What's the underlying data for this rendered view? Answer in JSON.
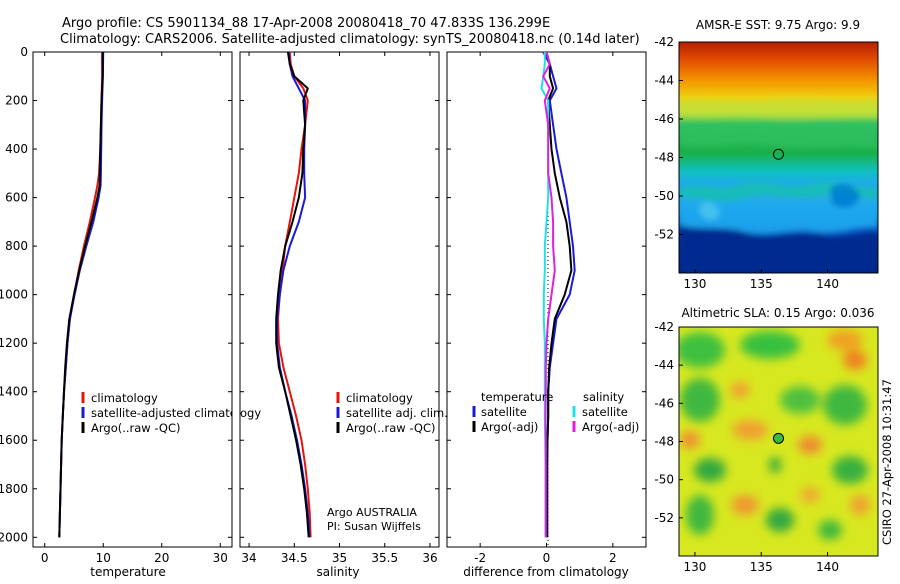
{
  "header": {
    "line1": "Argo profile: CS 5901134_88 17-Apr-2008 20080418_70 47.833S 136.299E",
    "line2": "Climatology: CARS2006. Satellite-adjusted climatology: synTS_20080418.nc (0.14d later)"
  },
  "side_text": "CSIRO 27-Apr-2008 10:31:47",
  "colors": {
    "red": "#e8140a",
    "blue": "#1a1ad8",
    "black": "#000000",
    "cyan": "#22e0e8",
    "magenta": "#e020e0"
  },
  "depth_axis": {
    "ticks": [
      "0",
      "200",
      "400",
      "600",
      "800",
      "1000",
      "1200",
      "1400",
      "1600",
      "1800",
      "2000"
    ],
    "range": [
      0,
      2040
    ]
  },
  "chart_data": [
    {
      "id": "temperature",
      "type": "line",
      "xlabel": "temperature",
      "xlim": [
        -2,
        32
      ],
      "xticks": [
        "0",
        "10",
        "20",
        "30"
      ],
      "legend": {
        "items": [
          {
            "label": "climatology",
            "color": "red"
          },
          {
            "label": "satellite-adjusted climatology",
            "color": "blue"
          },
          {
            "label": "Argo(..raw -QC)",
            "color": "black"
          }
        ]
      },
      "series": [
        {
          "name": "climatology",
          "color": "red",
          "depth": [
            0,
            100,
            200,
            300,
            400,
            500,
            550,
            600,
            700,
            800,
            900,
            1000,
            1100,
            1200,
            1300,
            1400,
            1500,
            1600,
            1700,
            1800,
            1900,
            2000
          ],
          "values": [
            9.8,
            9.8,
            9.7,
            9.6,
            9.5,
            9.3,
            9.0,
            8.6,
            7.7,
            6.7,
            5.8,
            5.0,
            4.3,
            3.9,
            3.6,
            3.3,
            3.1,
            2.9,
            2.8,
            2.7,
            2.6,
            2.5
          ]
        },
        {
          "name": "satellite-adjusted climatology",
          "color": "blue",
          "depth": [
            0,
            100,
            200,
            300,
            400,
            500,
            550,
            600,
            700,
            800,
            900,
            1000,
            1100,
            1200,
            1300,
            1400,
            1500,
            1600,
            1700,
            1800,
            1900,
            2000
          ],
          "values": [
            10.0,
            9.95,
            9.8,
            9.7,
            9.65,
            9.6,
            9.55,
            9.2,
            8.3,
            7.1,
            6.0,
            5.1,
            4.3,
            3.9,
            3.6,
            3.3,
            3.1,
            2.9,
            2.8,
            2.7,
            2.6,
            2.5
          ]
        },
        {
          "name": "Argo(..raw -QC)",
          "color": "black",
          "depth": [
            0,
            100,
            200,
            300,
            400,
            500,
            550,
            600,
            700,
            800,
            900,
            1000,
            1100,
            1200,
            1300,
            1400,
            1500,
            1600,
            1700,
            1800,
            1900,
            2000
          ],
          "values": [
            9.9,
            9.9,
            9.7,
            9.6,
            9.5,
            9.4,
            9.4,
            9.0,
            8.0,
            6.9,
            5.9,
            5.0,
            4.2,
            3.8,
            3.5,
            3.3,
            3.1,
            2.9,
            2.8,
            2.7,
            2.6,
            2.5
          ]
        }
      ]
    },
    {
      "id": "salinity",
      "type": "line",
      "xlabel": "salinity",
      "xlim": [
        33.9,
        36.1
      ],
      "xticks": [
        "34",
        "34.5",
        "35",
        "35.5",
        "36"
      ],
      "legend": {
        "items": [
          {
            "label": "climatology",
            "color": "red"
          },
          {
            "label": "satellite adj. clim.",
            "color": "blue"
          },
          {
            "label": "Argo(..raw -QC)",
            "color": "black"
          }
        ]
      },
      "credit": [
        "Argo AUSTRALIA",
        "PI: Susan Wijffels"
      ],
      "series": [
        {
          "name": "climatology",
          "color": "red",
          "depth": [
            0,
            50,
            100,
            150,
            200,
            300,
            400,
            500,
            600,
            700,
            800,
            900,
            1000,
            1100,
            1200,
            1300,
            1400,
            1500,
            1600,
            1700,
            1800,
            1900,
            2000
          ],
          "values": [
            34.45,
            34.46,
            34.5,
            34.6,
            34.65,
            34.62,
            34.58,
            34.55,
            34.5,
            34.45,
            34.4,
            34.37,
            34.34,
            34.32,
            34.33,
            34.38,
            34.45,
            34.52,
            34.58,
            34.62,
            34.65,
            34.67,
            34.68
          ]
        },
        {
          "name": "satellite adj. clim.",
          "color": "blue",
          "depth": [
            0,
            50,
            100,
            150,
            200,
            300,
            400,
            500,
            600,
            700,
            800,
            900,
            1000,
            1100,
            1200,
            1300,
            1400,
            1500,
            1600,
            1700,
            1800,
            1900,
            2000
          ],
          "values": [
            34.44,
            34.45,
            34.48,
            34.55,
            34.62,
            34.62,
            34.61,
            34.61,
            34.62,
            34.55,
            34.45,
            34.38,
            34.34,
            34.31,
            34.31,
            34.34,
            34.4,
            34.47,
            34.53,
            34.58,
            34.62,
            34.65,
            34.67
          ]
        },
        {
          "name": "Argo(..raw -QC)",
          "color": "black",
          "depth": [
            0,
            50,
            100,
            150,
            200,
            300,
            400,
            500,
            600,
            700,
            800,
            900,
            1000,
            1100,
            1200,
            1300,
            1400,
            1500,
            1600,
            1700,
            1800,
            1900,
            2000
          ],
          "values": [
            34.43,
            34.45,
            34.5,
            34.65,
            34.6,
            34.62,
            34.6,
            34.59,
            34.55,
            34.48,
            34.4,
            34.35,
            34.32,
            34.3,
            34.3,
            34.33,
            34.4,
            34.46,
            34.52,
            34.57,
            34.61,
            34.64,
            34.66
          ]
        }
      ]
    },
    {
      "id": "difference",
      "type": "line",
      "xlabel": "difference from climatology",
      "xlim": [
        -3,
        3
      ],
      "xticks": [
        "-2",
        "0",
        "2"
      ],
      "legend": {
        "temperature_title": "temperature",
        "salinity_title": "salinity",
        "items": [
          {
            "label": "satellite",
            "color": "blue",
            "group": "temperature"
          },
          {
            "label": "Argo(-adj)",
            "color": "black",
            "group": "temperature"
          },
          {
            "label": "satellite",
            "color": "cyan",
            "group": "salinity"
          },
          {
            "label": "Argo(-adj)",
            "color": "magenta",
            "group": "salinity"
          }
        ]
      },
      "series": [
        {
          "name": "temperature satellite",
          "color": "blue",
          "depth": [
            0,
            50,
            100,
            150,
            200,
            300,
            400,
            500,
            600,
            700,
            800,
            900,
            1000,
            1100,
            1200,
            1300,
            1400,
            1500,
            1600,
            1700,
            1800,
            1900,
            2000
          ],
          "values": [
            -0.1,
            0.1,
            0.2,
            0.3,
            0.1,
            0.2,
            0.3,
            0.45,
            0.6,
            0.7,
            0.8,
            0.85,
            0.7,
            0.3,
            0.2,
            0.1,
            0.05,
            0.05,
            0.03,
            0.02,
            0.02,
            0.02,
            0.02
          ]
        },
        {
          "name": "temperature Argo(-adj)",
          "color": "black",
          "depth": [
            0,
            50,
            100,
            150,
            200,
            300,
            400,
            500,
            600,
            700,
            800,
            900,
            1000,
            1100,
            1200,
            1300,
            1400,
            1500,
            1600,
            1700,
            1800,
            1900,
            2000
          ],
          "values": [
            0.0,
            0.1,
            0.1,
            0.2,
            0.05,
            0.1,
            0.15,
            0.25,
            0.4,
            0.6,
            0.7,
            0.75,
            0.55,
            0.25,
            0.15,
            0.08,
            0.05,
            0.05,
            0.03,
            0.02,
            0.02,
            0.02,
            0.02
          ]
        },
        {
          "name": "salinity satellite",
          "color": "cyan",
          "depth": [
            0,
            50,
            100,
            150,
            200,
            300,
            400,
            500,
            600,
            700,
            800,
            900,
            1000,
            1100,
            1200,
            1300,
            1400,
            1500,
            1600,
            1700,
            1800,
            1900,
            2000
          ],
          "values": [
            -0.05,
            -0.05,
            -0.1,
            -0.15,
            0.05,
            0.05,
            0.05,
            0.05,
            0.05,
            0.0,
            -0.05,
            -0.05,
            -0.08,
            -0.08,
            -0.05,
            -0.05,
            -0.05,
            -0.05,
            -0.04,
            -0.03,
            -0.03,
            -0.03,
            -0.03
          ]
        },
        {
          "name": "salinity Argo(-adj)",
          "color": "magenta",
          "depth": [
            0,
            50,
            100,
            150,
            200,
            300,
            400,
            500,
            600,
            700,
            800,
            900,
            1000,
            1100,
            1200,
            1300,
            1400,
            1500,
            1600,
            1700,
            1800,
            1900,
            2000
          ],
          "values": [
            0.0,
            0.1,
            -0.1,
            0.1,
            -0.05,
            0.05,
            0.05,
            0.05,
            0.15,
            0.2,
            0.2,
            0.25,
            0.15,
            0.05,
            0.0,
            -0.02,
            -0.02,
            -0.03,
            -0.02,
            -0.02,
            -0.02,
            -0.02,
            -0.02
          ]
        }
      ]
    },
    {
      "id": "sst_map",
      "type": "heatmap",
      "title": "AMSR-E SST: 9.75 Argo: 9.9",
      "xlim": [
        128.8,
        143.8
      ],
      "ylim": [
        -54,
        -42
      ],
      "xticks": [
        "130",
        "135",
        "140"
      ],
      "yticks": [
        "-42",
        "-44",
        "-46",
        "-48",
        "-50",
        "-52"
      ],
      "marker": {
        "lon": 136.299,
        "lat": -47.833,
        "filled": false
      }
    },
    {
      "id": "sla_map",
      "type": "heatmap",
      "title": "Altimetric SLA: 0.15 Argo: 0.036",
      "xlim": [
        128.8,
        143.8
      ],
      "ylim": [
        -54,
        -42
      ],
      "xticks": [
        "130",
        "135",
        "140"
      ],
      "yticks": [
        "-42",
        "-44",
        "-46",
        "-48",
        "-50",
        "-52"
      ],
      "marker": {
        "lon": 136.299,
        "lat": -47.833,
        "filled": true
      }
    }
  ]
}
